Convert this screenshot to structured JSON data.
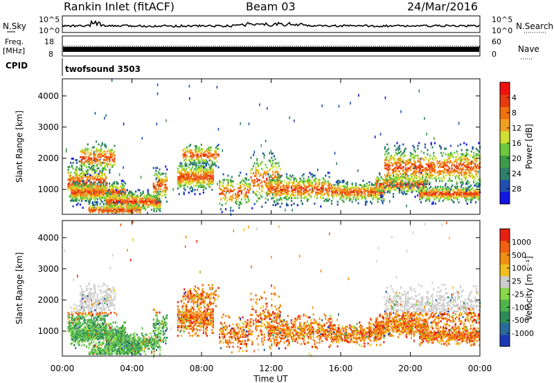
{
  "header": {
    "station": "Rankin Inlet (fitACF)",
    "beam": "Beam 03",
    "date": "24/Mar/2016"
  },
  "strips": {
    "nsky": {
      "label": "N.Sky",
      "ticks": [
        "10^5",
        "10^0"
      ]
    },
    "nsearch": {
      "label": "N.Search",
      "ticks": [
        "10^5",
        "10^0"
      ]
    },
    "freq": {
      "label_top": "Freq.",
      "label_unit": "[MHz]",
      "ticks": [
        "18",
        "8"
      ]
    },
    "nave": {
      "label": "Nave",
      "ticks": [
        "60",
        "0"
      ]
    },
    "cpid": {
      "label": "CPID",
      "program": "twofsound 3503"
    }
  },
  "chart_data": [
    {
      "type": "heatmap",
      "name": "power",
      "ylabel": "Slant Range [km]",
      "xlabel": "Time UT",
      "xlim": [
        "00:00",
        "24:00"
      ],
      "ylim": [
        200,
        4550
      ],
      "yticks": [
        "1000",
        "2000",
        "3000",
        "4000"
      ],
      "xticks": [
        "00:00",
        "04:00",
        "08:00",
        "12:00",
        "16:00",
        "20:00",
        "00:00"
      ],
      "colorbar": {
        "label": "Power [dB]",
        "ticks": [
          "4",
          "8",
          "12",
          "16",
          "20",
          "24",
          "28"
        ],
        "colors": [
          "#1414e6",
          "#1f4fb0",
          "#2f7f6a",
          "#3f9a4a",
          "#6dc83c",
          "#cfe032",
          "#f0a020",
          "#f07010",
          "#e63a10",
          "#f01010"
        ]
      }
    },
    {
      "type": "heatmap",
      "name": "velocity",
      "ylabel": "Slant Range [km]",
      "xlabel": "Time UT",
      "xlim": [
        "00:00",
        "24:00"
      ],
      "ylim": [
        200,
        4550
      ],
      "yticks": [
        "1000",
        "2000",
        "3000",
        "4000"
      ],
      "xticks": [
        "00:00",
        "04:00",
        "08:00",
        "12:00",
        "16:00",
        "20:00",
        "00:00"
      ],
      "colorbar": {
        "label": "Velocity [m s⁻¹]",
        "ticks": [
          "1000",
          "500",
          "100",
          "25",
          "-25",
          "-100",
          "-500",
          "-1000"
        ],
        "colors": [
          "#1c38b4",
          "#2a6a9a",
          "#2e8a58",
          "#4fb44a",
          "#88d84a",
          "#cccccc",
          "#f0c020",
          "#f09010",
          "#f06010",
          "#e62010"
        ]
      }
    }
  ]
}
